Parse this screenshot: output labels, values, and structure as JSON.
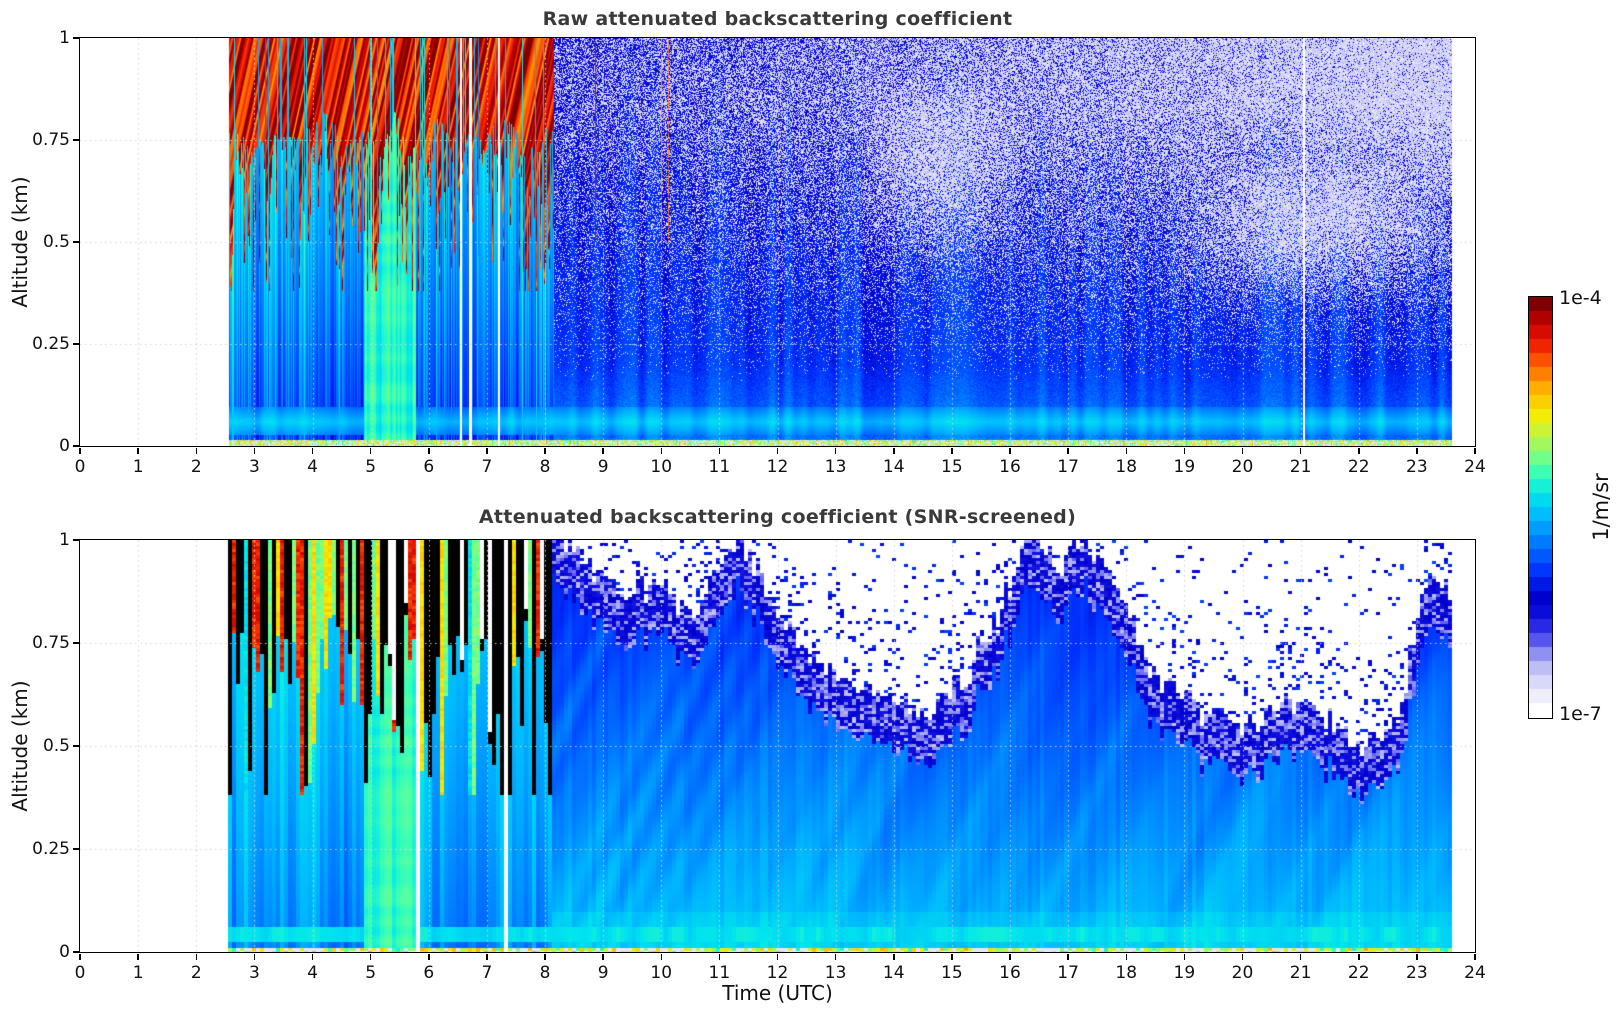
{
  "figure": {
    "background": "#ffffff",
    "title_color": "#3a3a3a"
  },
  "chart_data": {
    "type": "heatmap",
    "x_axis": {
      "label": "Time (UTC)",
      "min": 0,
      "max": 24,
      "ticks": [
        0,
        1,
        2,
        3,
        4,
        5,
        6,
        7,
        8,
        9,
        10,
        11,
        12,
        13,
        14,
        15,
        16,
        17,
        18,
        19,
        20,
        21,
        22,
        23,
        24
      ],
      "tick_labels": [
        "0",
        "1",
        "2",
        "3",
        "4",
        "5",
        "6",
        "7",
        "8",
        "9",
        "10",
        "11",
        "12",
        "13",
        "14",
        "15",
        "16",
        "17",
        "18",
        "19",
        "20",
        "21",
        "22",
        "23",
        "24"
      ],
      "grid": true
    },
    "y_axis": {
      "label": "Altitude (km)",
      "min": 0,
      "max": 1,
      "ticks": [
        0,
        0.25,
        0.5,
        0.75,
        1
      ],
      "tick_labels": [
        "0",
        "0.25",
        "0.5",
        "0.75",
        "1"
      ],
      "grid": true
    },
    "colorbar": {
      "unit": "1/m/sr",
      "scale": "log",
      "max_label": "1e-4",
      "min_label": "1e-7",
      "segments": 30,
      "saturated_color": "#000000",
      "stops": [
        [
          0.0,
          "#ffffff"
        ],
        [
          0.05,
          "#e6e6fb"
        ],
        [
          0.1,
          "#c3c3f7"
        ],
        [
          0.14,
          "#8e8ef2"
        ],
        [
          0.18,
          "#4a4aee"
        ],
        [
          0.225,
          "#1212e0"
        ],
        [
          0.28,
          "#0000cd"
        ],
        [
          0.34,
          "#0033ff"
        ],
        [
          0.41,
          "#0077ff"
        ],
        [
          0.47,
          "#00b4ff"
        ],
        [
          0.53,
          "#00e5ee"
        ],
        [
          0.58,
          "#33ffbb"
        ],
        [
          0.63,
          "#80ff80"
        ],
        [
          0.68,
          "#c3f53e"
        ],
        [
          0.73,
          "#f8ec00"
        ],
        [
          0.79,
          "#ffb300"
        ],
        [
          0.85,
          "#ff6000"
        ],
        [
          0.9,
          "#f02000"
        ],
        [
          0.95,
          "#c80000"
        ],
        [
          1.0,
          "#7f0000"
        ]
      ]
    },
    "panels": [
      {
        "id": "raw",
        "title": "Raw attenuated backscattering coefficient",
        "style": "per-pixel-noise",
        "data_start_utc": 2.55,
        "data_end_utc": 23.6,
        "gap_times_utc": [
          6.55,
          6.71,
          7.2,
          21.05
        ],
        "cloud": {
          "t_start": 2.55,
          "t_end": 8.15,
          "top_km": 1.0,
          "base_km": 0.66,
          "spike_depth_km": 0.48,
          "value_range": [
            0.8,
            1.0
          ]
        },
        "plume": {
          "t_start": 4.88,
          "t_end": 5.78,
          "value": 0.52
        },
        "low_band_km": [
          0.028,
          0.098
        ],
        "noise_speckle": {
          "t_start": 8.15,
          "growth_with_time": 0.5,
          "alt_onset_km": 0.16,
          "white_blobs": [
            {
              "t0": 13.3,
              "t1": 16.3,
              "alt0": 0.42,
              "alt1": 0.9,
              "strength": 0.33
            },
            {
              "t0": 18.6,
              "t1": 23.6,
              "alt0": 0.33,
              "alt1": 0.72,
              "strength": 0.38
            }
          ],
          "colored_streaks_until_utc": 11.25
        }
      },
      {
        "id": "screened",
        "title": "Attenuated backscattering coefficient (SNR-screened)",
        "style": "blocky-screened",
        "data_start_utc": 2.55,
        "data_end_utc": 23.6,
        "gap_times_utc": [
          5.82,
          6.0,
          7.33,
          21.05
        ],
        "cloud": {
          "t_start": 2.55,
          "t_end": 8.15,
          "top_km": 1.0,
          "base_km": 0.66,
          "spike_depth_km": 0.48,
          "black_core_fraction": 0.5
        },
        "plume": {
          "t_start": 4.88,
          "t_end": 5.78,
          "value": 0.52
        },
        "low_band_km": [
          0.022,
          0.062
        ],
        "snr_mask_boundary_km": [
          [
            8.15,
            1.02
          ],
          [
            8.6,
            0.92
          ],
          [
            9.2,
            0.85
          ],
          [
            9.9,
            0.88
          ],
          [
            10.6,
            0.8
          ],
          [
            11.35,
            1.0
          ],
          [
            11.8,
            0.85
          ],
          [
            12.3,
            0.72
          ],
          [
            13.0,
            0.66
          ],
          [
            13.8,
            0.6
          ],
          [
            14.6,
            0.56
          ],
          [
            15.2,
            0.64
          ],
          [
            15.8,
            0.8
          ],
          [
            16.3,
            1.0
          ],
          [
            16.8,
            0.9
          ],
          [
            17.3,
            1.0
          ],
          [
            17.9,
            0.85
          ],
          [
            18.4,
            0.68
          ],
          [
            19.2,
            0.58
          ],
          [
            20.0,
            0.52
          ],
          [
            20.7,
            0.58
          ],
          [
            21.3,
            0.55
          ],
          [
            22.0,
            0.48
          ],
          [
            22.7,
            0.55
          ],
          [
            23.2,
            0.9
          ],
          [
            23.6,
            0.85
          ]
        ]
      }
    ]
  },
  "layout_text": {
    "top_title": "Raw attenuated backscattering coefficient",
    "bottom_title": "Attenuated backscattering coefficient (SNR-screened)",
    "x_label": "Time (UTC)",
    "y_label_top": "Altitude (km)",
    "y_label_bottom": "Altitude (km)",
    "cbar_max": "1e-4",
    "cbar_min": "1e-7",
    "cbar_unit": "1/m/sr"
  }
}
